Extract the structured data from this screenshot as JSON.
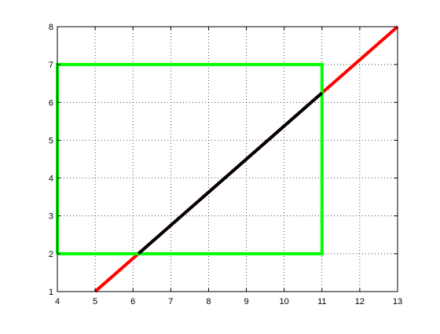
{
  "chart_data": {
    "type": "line",
    "title": "",
    "xlabel": "",
    "ylabel": "",
    "xlim": [
      4,
      13
    ],
    "ylim": [
      1,
      8
    ],
    "xticks": [
      4,
      5,
      6,
      7,
      8,
      9,
      10,
      11,
      12,
      13
    ],
    "yticks": [
      1,
      2,
      3,
      4,
      5,
      6,
      7,
      8
    ],
    "grid": true,
    "grid_style": "dotted",
    "series": [
      {
        "color": "#ff0000",
        "line_width": "thick",
        "points": [
          [
            5,
            1
          ],
          [
            13,
            8
          ]
        ]
      },
      {
        "color": "#00ff00",
        "line_width": "thick",
        "points": [
          [
            4,
            2
          ],
          [
            11,
            2
          ],
          [
            11,
            7
          ],
          [
            4,
            7
          ],
          [
            4,
            2
          ]
        ]
      },
      {
        "color": "#000000",
        "line_width": "thick",
        "points": [
          [
            6.143,
            2
          ],
          [
            11,
            6.25
          ]
        ]
      }
    ]
  }
}
